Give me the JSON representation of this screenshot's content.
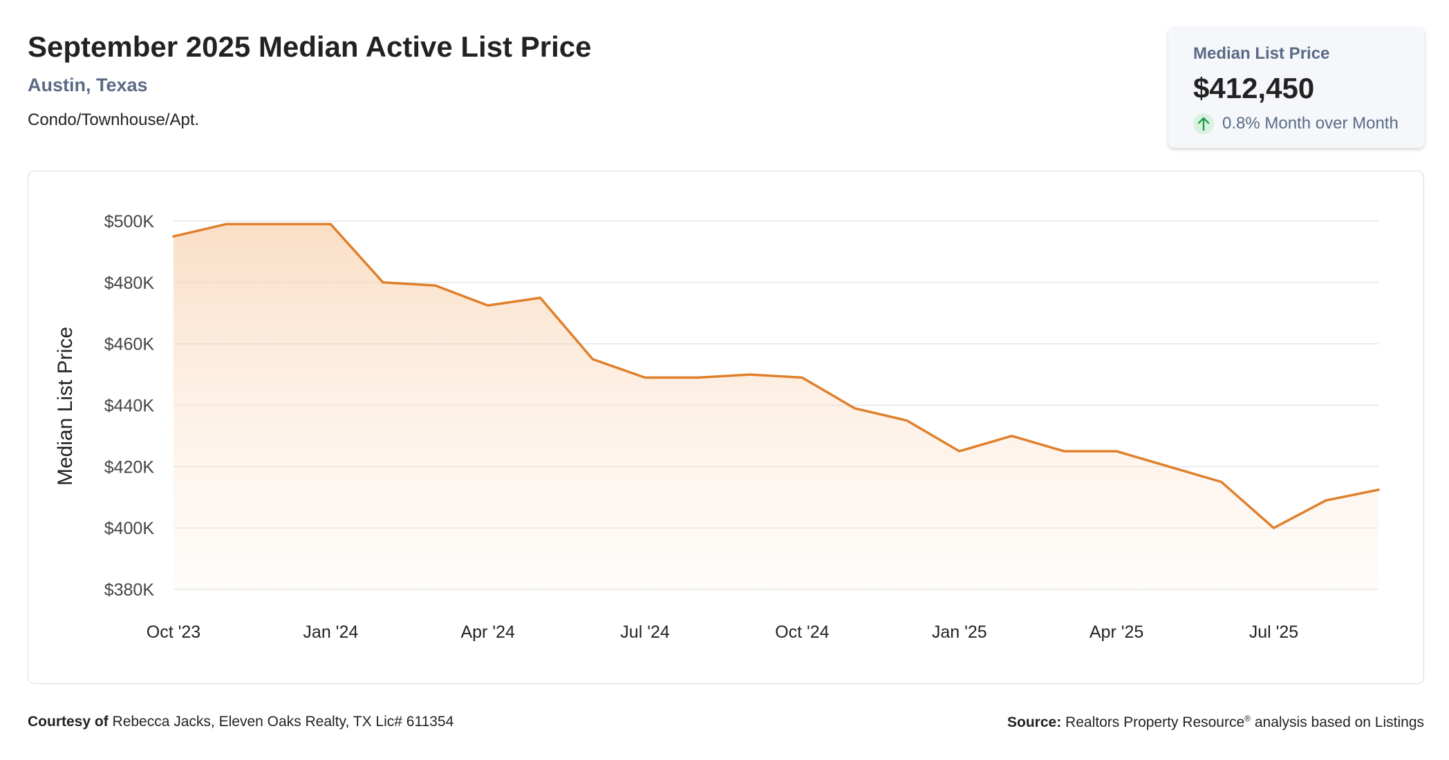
{
  "header": {
    "title": "September 2025 Median Active List Price",
    "location": "Austin, Texas",
    "property_type": "Condo/Townhouse/Apt."
  },
  "stat_card": {
    "label": "Median List Price",
    "value": "$412,450",
    "change": "0.8% Month over Month",
    "direction_icon": "arrow-up-icon"
  },
  "colors": {
    "line": "#e07f2a",
    "accent_text": "#5a6a85",
    "up": "#1e9e4e"
  },
  "chart_data": {
    "type": "area",
    "title": "September 2025 Median Active List Price",
    "ylabel": "Median List Price",
    "xlabel": "",
    "ylim": [
      380000,
      500000
    ],
    "y_ticks": [
      {
        "value": 500000,
        "label": "$500K"
      },
      {
        "value": 480000,
        "label": "$480K"
      },
      {
        "value": 460000,
        "label": "$460K"
      },
      {
        "value": 440000,
        "label": "$440K"
      },
      {
        "value": 420000,
        "label": "$420K"
      },
      {
        "value": 400000,
        "label": "$400K"
      },
      {
        "value": 380000,
        "label": "$380K"
      }
    ],
    "x_ticks": [
      {
        "index": 0,
        "label": "Oct '23"
      },
      {
        "index": 3,
        "label": "Jan '24"
      },
      {
        "index": 6,
        "label": "Apr '24"
      },
      {
        "index": 9,
        "label": "Jul '24"
      },
      {
        "index": 12,
        "label": "Oct '24"
      },
      {
        "index": 15,
        "label": "Jan '25"
      },
      {
        "index": 18,
        "label": "Apr '25"
      },
      {
        "index": 21,
        "label": "Jul '25"
      }
    ],
    "grid": true,
    "legend": "none",
    "series": [
      {
        "x": [
          "2023-10",
          "2023-11",
          "2023-12",
          "2024-01",
          "2024-02",
          "2024-03",
          "2024-04",
          "2024-05",
          "2024-06",
          "2024-07",
          "2024-08",
          "2024-09",
          "2024-10",
          "2024-11",
          "2024-12",
          "2025-01",
          "2025-02",
          "2025-03",
          "2025-04",
          "2025-05",
          "2025-06",
          "2025-07",
          "2025-08",
          "2025-09"
        ],
        "values": [
          495000,
          499000,
          499000,
          499000,
          480000,
          479000,
          472500,
          475000,
          455000,
          449000,
          449000,
          450000,
          449000,
          439000,
          435000,
          425000,
          430000,
          425000,
          425000,
          420000,
          415000,
          400000,
          409000,
          412450
        ]
      }
    ]
  },
  "footer": {
    "courtesy_label": "Courtesy of",
    "courtesy_text": "Rebecca Jacks, Eleven Oaks Realty, TX Lic# 611354",
    "source_label": "Source:",
    "source_text": "Realtors Property Resource",
    "source_mark": "®",
    "source_suffix": "analysis based on Listings"
  }
}
